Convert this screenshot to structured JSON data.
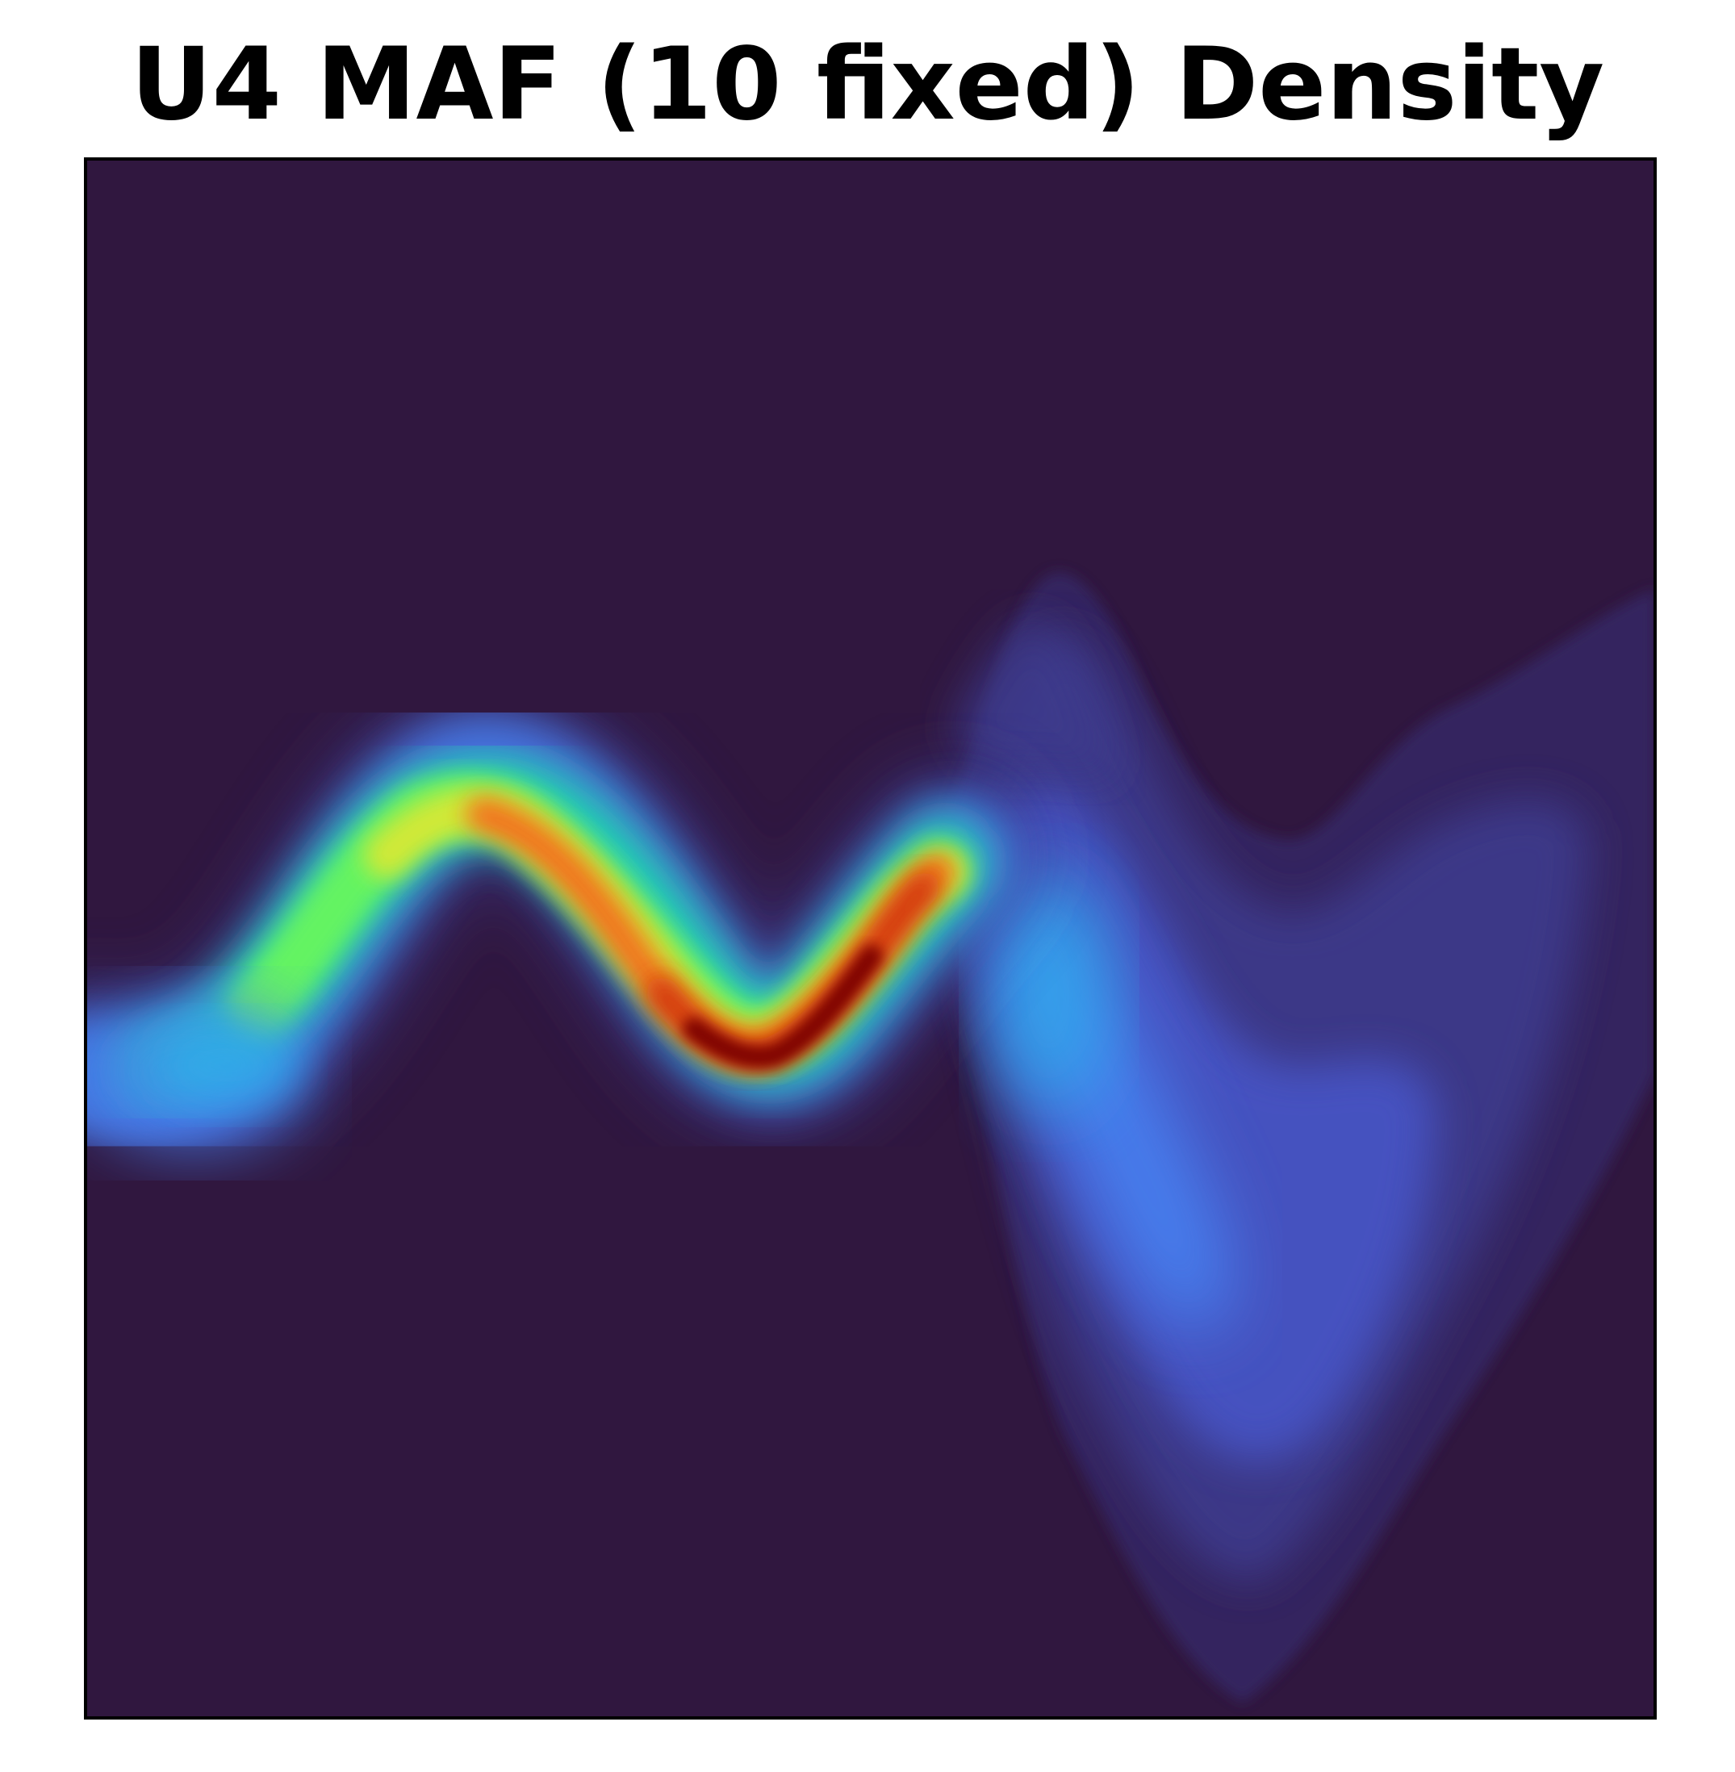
{
  "chart_data": {
    "type": "heatmap",
    "title": "U4 MAF (10 fixed) Density",
    "xlabel": "",
    "ylabel": "",
    "grid": false,
    "axis_ticks": false,
    "legend": "none",
    "colormap": "turbo",
    "colors": {
      "background": "#30173f",
      "frame": "#000000",
      "density_ramp": [
        "#30173f",
        "#362863",
        "#3d3a8c",
        "#4655c6",
        "#4680f0",
        "#28bceb",
        "#1fe0a8",
        "#6cf75a",
        "#d7e835",
        "#fcb530",
        "#f4701d",
        "#d23808",
        "#a51402",
        "#7a0403"
      ]
    },
    "description_free_values": {
      "ridge_curve_y_by_x": {
        "x": [
          0.0,
          0.1,
          0.2,
          0.25,
          0.3,
          0.35,
          0.4,
          0.45,
          0.5,
          0.55,
          0.6
        ],
        "y": [
          0.55,
          0.57,
          0.64,
          0.69,
          0.6,
          0.48,
          0.38,
          0.35,
          0.42,
          0.52,
          0.61
        ]
      },
      "ridge_peak_density": 1.0,
      "diffuse_lobe_peak_density": 0.4
    }
  }
}
